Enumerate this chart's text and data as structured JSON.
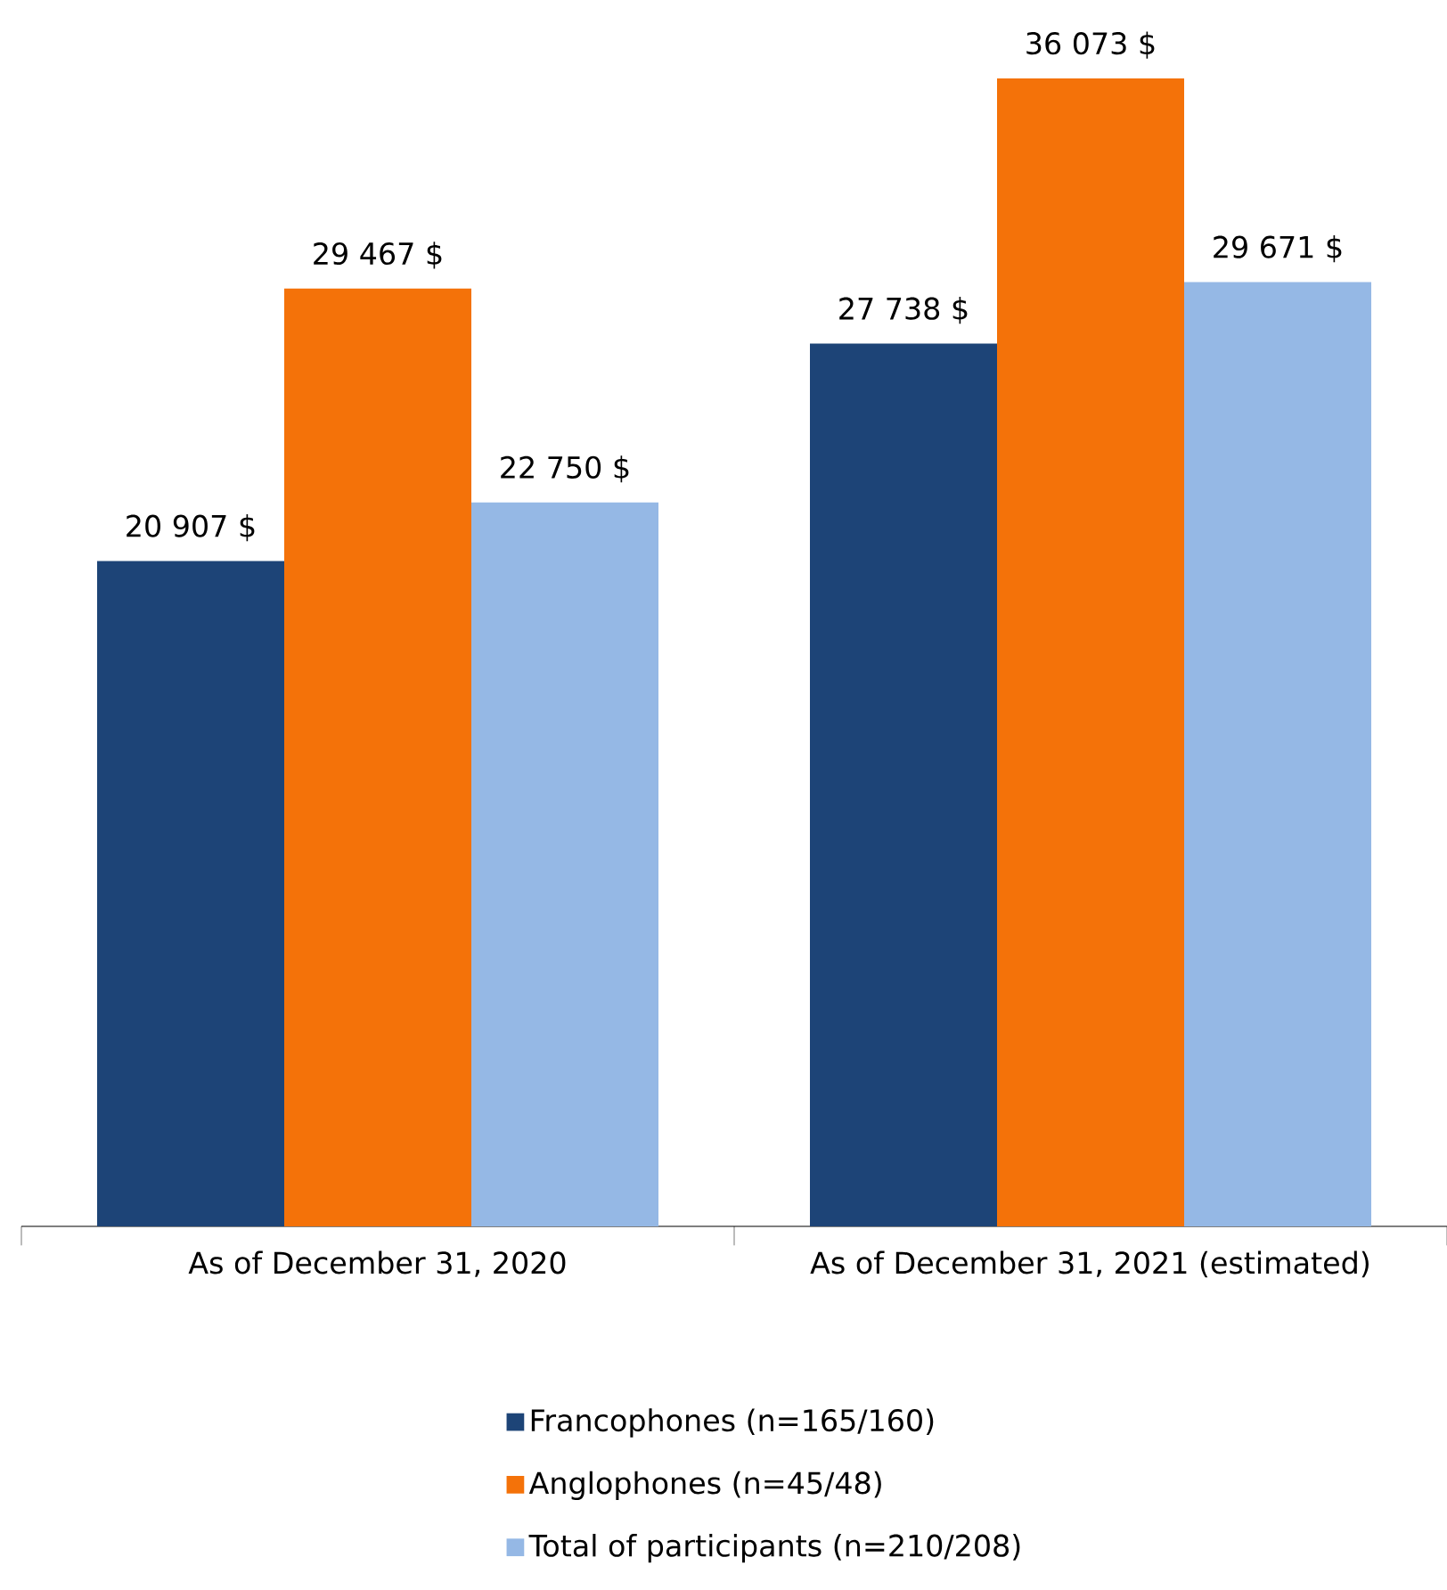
{
  "chart_data": {
    "type": "bar",
    "categories": [
      "As of December 31, 2020",
      "As of December 31, 2021 (estimated)"
    ],
    "series": [
      {
        "name": "Francophones (n=165/160)",
        "color": "#1d4477",
        "values": [
          20907,
          27738
        ],
        "value_labels": [
          "20 907 $",
          "27 738 $"
        ]
      },
      {
        "name": "Anglophones (n=45/48)",
        "color": "#f47209",
        "values": [
          29467,
          36073
        ],
        "value_labels": [
          "29 467 $",
          "36 073 $"
        ]
      },
      {
        "name": "Total of participants (n=210/208)",
        "color": "#95b8e5",
        "values": [
          22750,
          29671
        ],
        "value_labels": [
          "22 750 $",
          "29 671 $"
        ]
      }
    ],
    "legend": "bottom"
  }
}
